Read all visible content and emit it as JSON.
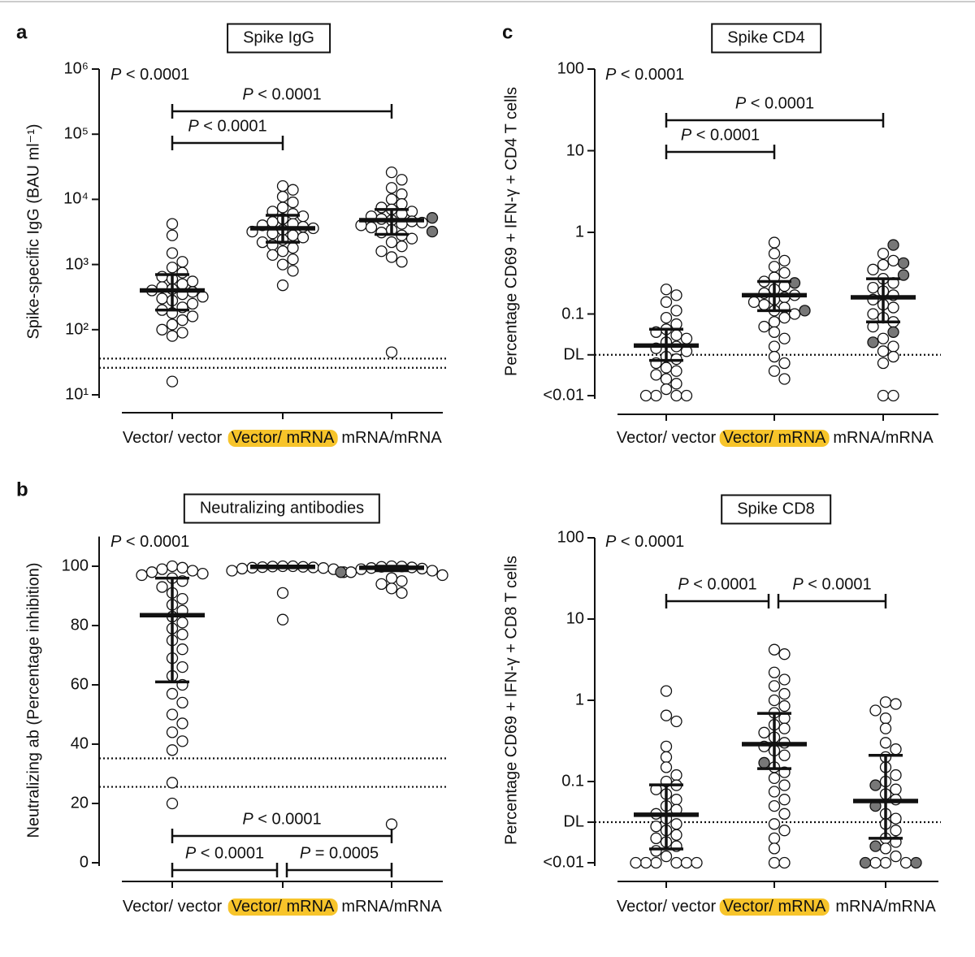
{
  "chart_data": [
    {
      "type": "dotplot",
      "panel_label": "a",
      "title": "Spike IgG",
      "y_label": "Spike-specific IgG (BAU ml⁻¹)",
      "y_scale": "log",
      "ylim": [
        10,
        1000000
      ],
      "yticks": [
        {
          "value": 10,
          "label": "10¹"
        },
        {
          "value": 100,
          "label": "10²"
        },
        {
          "value": 1000,
          "label": "10³"
        },
        {
          "value": 10000,
          "label": "10⁴"
        },
        {
          "value": 100000,
          "label": "10⁵"
        },
        {
          "value": 1000000,
          "label": "10⁶"
        }
      ],
      "ref_lines": [
        36,
        26
      ],
      "categories": [
        "Vector/ vector",
        "Vector/ mRNA",
        "mRNA/mRNA"
      ],
      "highlighted": [
        false,
        true,
        false
      ],
      "highlight_color": "#f7c42a",
      "p_overall": "P < 0.0001",
      "bracket_position": "top",
      "comparisons": [
        {
          "groups": [
            0,
            1
          ],
          "label": "P < 0.0001"
        },
        {
          "groups": [
            0,
            2
          ],
          "label": "P < 0.0001"
        }
      ],
      "groups": [
        {
          "values": [
            4200,
            2800,
            1500,
            1100,
            900,
            750,
            650,
            600,
            550,
            500,
            450,
            420,
            400,
            380,
            350,
            320,
            300,
            280,
            250,
            220,
            200,
            180,
            160,
            140,
            120,
            100,
            90,
            80,
            16
          ],
          "filled_values": [],
          "median": 400,
          "q1": 200,
          "q3": 700
        },
        {
          "values": [
            16000,
            14000,
            11000,
            9000,
            7500,
            6500,
            6000,
            5500,
            5000,
            4500,
            4200,
            4000,
            3800,
            3600,
            3400,
            3200,
            3000,
            2800,
            2600,
            2400,
            2200,
            2000,
            1800,
            1600,
            1400,
            1200,
            1000,
            800,
            480
          ],
          "filled_values": [],
          "median": 3600,
          "q1": 2200,
          "q3": 5700
        },
        {
          "values": [
            26000,
            20000,
            15000,
            12000,
            10000,
            8500,
            7500,
            7000,
            6500,
            6000,
            5500,
            5000,
            4800,
            4600,
            4400,
            4200,
            4000,
            3700,
            3400,
            3100,
            2800,
            2500,
            2200,
            1900,
            1600,
            1300,
            1100,
            45
          ],
          "filled_values": [
            5200,
            3200
          ],
          "median": 4800,
          "q1": 2900,
          "q3": 7000
        }
      ]
    },
    {
      "type": "dotplot",
      "panel_label": "b",
      "title": "Neutralizing antibodies",
      "y_label": "Neutralizing ab (Percentage inhibition)",
      "y_scale": "linear",
      "ylim": [
        0,
        110
      ],
      "yticks": [
        0,
        20,
        40,
        60,
        80,
        100
      ],
      "ref_lines": [
        35.2,
        25.6
      ],
      "categories": [
        "Vector/ vector",
        "Vector/ mRNA",
        "mRNA/mRNA"
      ],
      "highlighted": [
        false,
        true,
        false
      ],
      "highlight_color": "#f7c42a",
      "p_overall": "P < 0.0001",
      "bracket_position": "bottom",
      "comparisons": [
        {
          "groups": [
            0,
            1
          ],
          "label": "P < 0.0001"
        },
        {
          "groups": [
            1,
            2
          ],
          "label": "P = 0.0005"
        },
        {
          "groups": [
            0,
            2
          ],
          "label": "P < 0.0001"
        }
      ],
      "groups": [
        {
          "values": [
            100,
            99.5,
            99,
            98.5,
            98,
            97.5,
            97,
            96,
            95,
            93,
            91,
            89,
            87,
            85,
            83,
            81,
            79,
            77,
            75,
            72,
            69,
            66,
            63,
            60,
            57,
            54,
            50,
            47,
            44,
            41,
            38,
            27,
            20
          ],
          "filled_values": [],
          "median": 83.5,
          "q1": 61,
          "q3": 96
        },
        {
          "values": [
            100,
            100,
            99.9,
            99.8,
            99.7,
            99.6,
            99.5,
            99.4,
            99.2,
            99,
            98.5,
            98,
            91,
            82
          ],
          "filled_values": [],
          "median": 99.8,
          "q1": 99.5,
          "q3": 100
        },
        {
          "values": [
            100,
            99.9,
            99.8,
            99.6,
            99.4,
            99.2,
            99,
            98.5,
            98,
            97,
            96,
            95,
            94,
            92.5,
            91,
            13
          ],
          "filled_values": [
            98
          ],
          "median": 99.5,
          "q1": 98.5,
          "q3": 100
        }
      ]
    },
    {
      "type": "dotplot",
      "panel_label": "c",
      "title": "Spike CD4",
      "y_label": "Percentage CD69 + IFN-γ + CD4 T cells",
      "y_scale": "log",
      "ylim": [
        0.01,
        100
      ],
      "yticks": [
        {
          "value": 0.01,
          "label": "<0.01"
        },
        {
          "value": 0.0316,
          "label": "DL"
        },
        0.1,
        1,
        10,
        100
      ],
      "ref_lines": [
        0.0316
      ],
      "categories": [
        "Vector/ vector",
        "Vector/ mRNA",
        "mRNA/mRNA"
      ],
      "highlighted": [
        false,
        true,
        false
      ],
      "highlight_color": "#f7c42a",
      "p_overall": "P < 0.0001",
      "bracket_position": "top",
      "comparisons": [
        {
          "groups": [
            0,
            1
          ],
          "label": "P < 0.0001"
        },
        {
          "groups": [
            0,
            2
          ],
          "label": "P < 0.0001"
        }
      ],
      "groups": [
        {
          "values": [
            0.2,
            0.17,
            0.14,
            0.11,
            0.09,
            0.075,
            0.065,
            0.06,
            0.055,
            0.05,
            0.045,
            0.04,
            0.038,
            0.035,
            0.03,
            0.028,
            0.025,
            0.022,
            0.02,
            0.018,
            0.016,
            0.014,
            0.012,
            0.01,
            0.01,
            0.01,
            0.01
          ],
          "filled_values": [],
          "median": 0.041,
          "q1": 0.027,
          "q3": 0.065
        },
        {
          "values": [
            0.75,
            0.55,
            0.45,
            0.38,
            0.32,
            0.28,
            0.25,
            0.22,
            0.2,
            0.18,
            0.17,
            0.16,
            0.15,
            0.14,
            0.13,
            0.12,
            0.11,
            0.1,
            0.09,
            0.08,
            0.07,
            0.06,
            0.05,
            0.04,
            0.03,
            0.025,
            0.02,
            0.016
          ],
          "filled_values": [
            0.24,
            0.11
          ],
          "median": 0.17,
          "q1": 0.11,
          "q3": 0.25
        },
        {
          "values": [
            0.55,
            0.45,
            0.4,
            0.35,
            0.27,
            0.24,
            0.21,
            0.19,
            0.17,
            0.15,
            0.13,
            0.12,
            0.1,
            0.09,
            0.08,
            0.07,
            0.05,
            0.04,
            0.035,
            0.03,
            0.025,
            0.01,
            0.01
          ],
          "filled_values": [
            0.7,
            0.42,
            0.3,
            0.06,
            0.045
          ],
          "median": 0.16,
          "q1": 0.08,
          "q3": 0.27
        }
      ]
    },
    {
      "type": "dotplot",
      "title": "Spike CD8",
      "y_label": "Percentage CD69 + IFN-γ + CD8 T cells",
      "y_scale": "log",
      "ylim": [
        0.01,
        100
      ],
      "yticks": [
        {
          "value": 0.01,
          "label": "<0.01"
        },
        {
          "value": 0.0316,
          "label": "DL"
        },
        0.1,
        1,
        10,
        100
      ],
      "ref_lines": [
        0.0316
      ],
      "categories": [
        "Vector/ vector",
        "Vector/ mRNA",
        "mRNA/mRNA"
      ],
      "highlighted": [
        false,
        true,
        false
      ],
      "highlight_color": "#f7c42a",
      "p_overall": "P < 0.0001",
      "bracket_position": "top",
      "comparisons": [
        {
          "groups": [
            0,
            1
          ],
          "label": "P < 0.0001"
        },
        {
          "groups": [
            1,
            2
          ],
          "label": "P < 0.0001"
        }
      ],
      "groups": [
        {
          "values": [
            1.3,
            0.65,
            0.55,
            0.27,
            0.2,
            0.15,
            0.12,
            0.1,
            0.09,
            0.08,
            0.07,
            0.06,
            0.05,
            0.045,
            0.04,
            0.035,
            0.03,
            0.028,
            0.025,
            0.022,
            0.02,
            0.018,
            0.016,
            0.014,
            0.012,
            0.01,
            0.01,
            0.01,
            0.01,
            0.01,
            0.01
          ],
          "filled_values": [],
          "median": 0.039,
          "q1": 0.0148,
          "q3": 0.091
        },
        {
          "values": [
            4.2,
            3.7,
            2.2,
            1.8,
            1.5,
            1.2,
            1,
            0.85,
            0.7,
            0.6,
            0.5,
            0.45,
            0.4,
            0.35,
            0.3,
            0.27,
            0.24,
            0.21,
            0.15,
            0.13,
            0.11,
            0.09,
            0.075,
            0.06,
            0.05,
            0.04,
            0.03,
            0.025,
            0.02,
            0.015,
            0.01,
            0.01
          ],
          "filled_values": [
            0.17
          ],
          "median": 0.288,
          "q1": 0.144,
          "q3": 0.69
        },
        {
          "values": [
            0.95,
            0.9,
            0.75,
            0.6,
            0.45,
            0.3,
            0.25,
            0.2,
            0.15,
            0.12,
            0.1,
            0.08,
            0.07,
            0.06,
            0.04,
            0.035,
            0.03,
            0.025,
            0.02,
            0.018,
            0.015,
            0.012,
            0.01,
            0.01,
            0.01
          ],
          "filled_values": [
            0.09,
            0.05,
            0.016,
            0.01,
            0.01
          ],
          "median": 0.0575,
          "q1": 0.02,
          "q3": 0.21
        }
      ]
    }
  ]
}
